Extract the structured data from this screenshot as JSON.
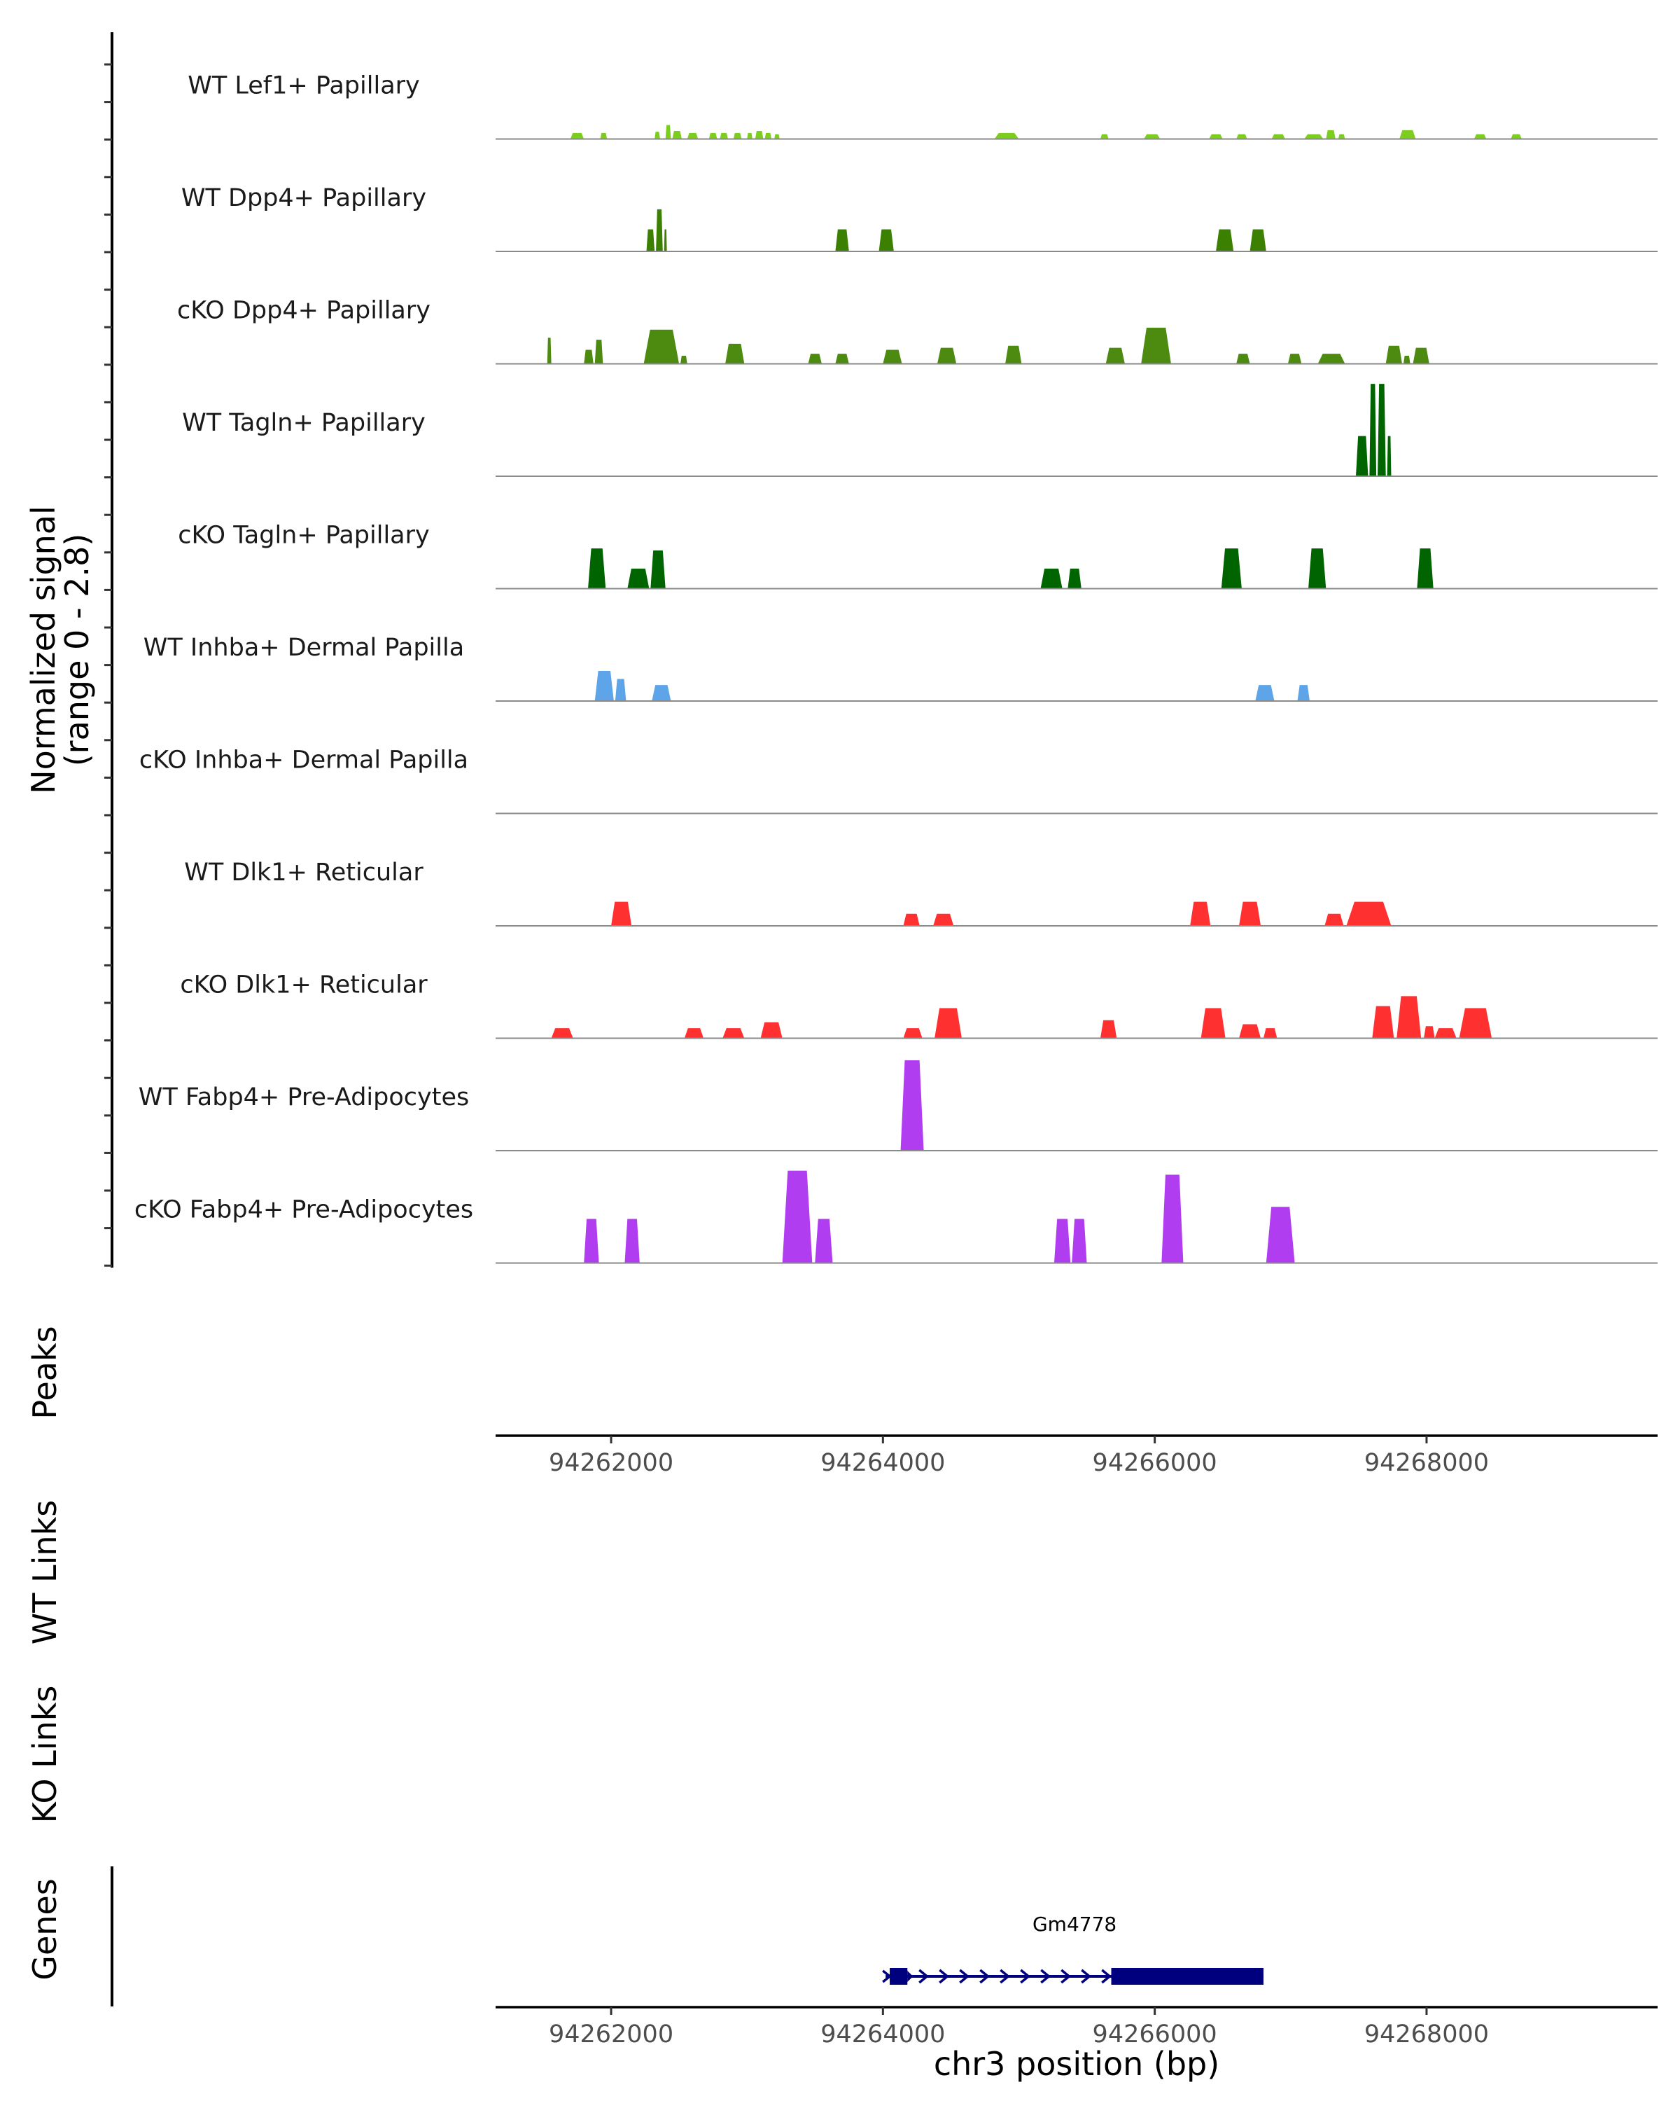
{
  "chart_data": {
    "type": "area",
    "chromosome": "chr3",
    "xlim": [
      94261150,
      94269700
    ],
    "x_ticks": [
      94262000,
      94264000,
      94266000,
      94268000
    ],
    "x_tick_labels": [
      "94262000",
      "94264000",
      "94266000",
      "94268000"
    ],
    "xlabel": "chr3 position (bp)",
    "ylabel_line1": "Normalized signal",
    "ylabel_line2": "(range 0 - 2.8)",
    "ylim": [
      0,
      2.8
    ],
    "section_labels": {
      "peaks": "Peaks",
      "wt_links": "WT Links",
      "ko_links": "KO Links",
      "genes": "Genes"
    },
    "series": [
      {
        "name": "WT Lef1+ Papillary",
        "color": "#7ccd1f",
        "peaks": [
          [
            94261700,
            94261800,
            0.15
          ],
          [
            94261920,
            94261970,
            0.15
          ],
          [
            94262320,
            94262360,
            0.18
          ],
          [
            94262400,
            94262440,
            0.35
          ],
          [
            94262450,
            94262520,
            0.2
          ],
          [
            94262560,
            94262640,
            0.15
          ],
          [
            94262720,
            94262780,
            0.15
          ],
          [
            94262800,
            94262860,
            0.15
          ],
          [
            94262900,
            94262960,
            0.15
          ],
          [
            94263000,
            94263040,
            0.15
          ],
          [
            94263060,
            94263120,
            0.2
          ],
          [
            94263130,
            94263180,
            0.15
          ],
          [
            94263200,
            94263240,
            0.12
          ],
          [
            94264820,
            94265000,
            0.15
          ],
          [
            94265600,
            94265660,
            0.12
          ],
          [
            94265920,
            94266040,
            0.12
          ],
          [
            94266400,
            94266500,
            0.12
          ],
          [
            94266600,
            94266680,
            0.12
          ],
          [
            94266860,
            94266960,
            0.12
          ],
          [
            94267100,
            94267240,
            0.12
          ],
          [
            94267260,
            94267330,
            0.22
          ],
          [
            94267350,
            94267400,
            0.12
          ],
          [
            94267800,
            94267920,
            0.22
          ],
          [
            94268350,
            94268440,
            0.12
          ],
          [
            94268620,
            94268700,
            0.12
          ]
        ]
      },
      {
        "name": "WT Dpp4+ Papillary",
        "color": "#3b8000",
        "peaks": [
          [
            94262260,
            94262320,
            0.55
          ],
          [
            94262330,
            94262380,
            1.05
          ],
          [
            94262390,
            94262410,
            0.55
          ],
          [
            94263650,
            94263750,
            0.55
          ],
          [
            94263970,
            94264080,
            0.55
          ],
          [
            94266450,
            94266580,
            0.55
          ],
          [
            94266700,
            94266820,
            0.55
          ]
        ]
      },
      {
        "name": "cKO Dpp4+ Papillary",
        "color": "#4c8a10",
        "peaks": [
          [
            94261530,
            94261560,
            0.65
          ],
          [
            94261800,
            94261870,
            0.35
          ],
          [
            94261880,
            94261940,
            0.6
          ],
          [
            94262240,
            94262500,
            0.85
          ],
          [
            94262510,
            94262560,
            0.2
          ],
          [
            94262840,
            94262980,
            0.5
          ],
          [
            94263450,
            94263550,
            0.25
          ],
          [
            94263650,
            94263750,
            0.25
          ],
          [
            94264000,
            94264140,
            0.35
          ],
          [
            94264400,
            94264540,
            0.4
          ],
          [
            94264900,
            94265020,
            0.45
          ],
          [
            94265640,
            94265780,
            0.4
          ],
          [
            94265900,
            94266120,
            0.9
          ],
          [
            94266600,
            94266700,
            0.25
          ],
          [
            94266980,
            94267080,
            0.25
          ],
          [
            94267200,
            94267400,
            0.25
          ],
          [
            94267700,
            94267820,
            0.45
          ],
          [
            94267830,
            94267880,
            0.2
          ],
          [
            94267900,
            94268020,
            0.4
          ]
        ]
      },
      {
        "name": "WT Tagln+ Papillary",
        "color": "#006400",
        "peaks": [
          [
            94267480,
            94267570,
            1.0
          ],
          [
            94267580,
            94267630,
            2.3
          ],
          [
            94267640,
            94267700,
            2.3
          ],
          [
            94267710,
            94267740,
            1.0
          ]
        ]
      },
      {
        "name": "cKO Tagln+ Papillary",
        "color": "#006400",
        "peaks": [
          [
            94261830,
            94261960,
            1.0
          ],
          [
            94262120,
            94262280,
            0.5
          ],
          [
            94262290,
            94262400,
            0.95
          ],
          [
            94265160,
            94265320,
            0.5
          ],
          [
            94265360,
            94265460,
            0.5
          ],
          [
            94266490,
            94266640,
            1.0
          ],
          [
            94267130,
            94267260,
            1.0
          ],
          [
            94267930,
            94268050,
            1.0
          ]
        ]
      },
      {
        "name": "WT Inhba+ Dermal Papilla",
        "color": "#5da5e8",
        "peaks": [
          [
            94261880,
            94262020,
            0.75
          ],
          [
            94262030,
            94262110,
            0.55
          ],
          [
            94262300,
            94262440,
            0.4
          ],
          [
            94266740,
            94266880,
            0.4
          ],
          [
            94267050,
            94267140,
            0.4
          ]
        ]
      },
      {
        "name": "cKO Inhba+ Dermal Papilla",
        "color": "#5da5e8",
        "peaks": []
      },
      {
        "name": "WT Dlk1+ Reticular",
        "color": "#ff3030",
        "peaks": [
          [
            94262000,
            94262150,
            0.6
          ],
          [
            94264150,
            94264270,
            0.3
          ],
          [
            94264370,
            94264520,
            0.3
          ],
          [
            94266260,
            94266410,
            0.6
          ],
          [
            94266620,
            94266780,
            0.6
          ],
          [
            94267250,
            94267390,
            0.3
          ],
          [
            94267410,
            94267740,
            0.6
          ]
        ]
      },
      {
        "name": "cKO Dlk1+ Reticular",
        "color": "#ff3030",
        "peaks": [
          [
            94261560,
            94261720,
            0.25
          ],
          [
            94262540,
            94262680,
            0.25
          ],
          [
            94262820,
            94262980,
            0.25
          ],
          [
            94263100,
            94263260,
            0.4
          ],
          [
            94264150,
            94264290,
            0.25
          ],
          [
            94264380,
            94264580,
            0.75
          ],
          [
            94265600,
            94265720,
            0.45
          ],
          [
            94266340,
            94266520,
            0.75
          ],
          [
            94266620,
            94266780,
            0.35
          ],
          [
            94266800,
            94266900,
            0.25
          ],
          [
            94267600,
            94267760,
            0.8
          ],
          [
            94267780,
            94267960,
            1.05
          ],
          [
            94267980,
            94268060,
            0.3
          ],
          [
            94268060,
            94268220,
            0.25
          ],
          [
            94268240,
            94268480,
            0.75
          ]
        ]
      },
      {
        "name": "WT Fabp4+ Pre-Adipocytes",
        "color": "#b03ef0",
        "peaks": [
          [
            94264130,
            94264300,
            2.25
          ]
        ]
      },
      {
        "name": "cKO Fabp4+ Pre-Adipocytes",
        "color": "#b03ef0",
        "peaks": [
          [
            94261800,
            94261910,
            1.1
          ],
          [
            94262100,
            94262210,
            1.1
          ],
          [
            94263260,
            94263480,
            2.3
          ],
          [
            94263500,
            94263630,
            1.1
          ],
          [
            94265260,
            94265380,
            1.1
          ],
          [
            94265390,
            94265500,
            1.1
          ],
          [
            94266050,
            94266210,
            2.2
          ],
          [
            94266820,
            94267030,
            1.4
          ]
        ]
      }
    ],
    "gene": {
      "name": "Gm4778",
      "strand": "+",
      "start": 94264020,
      "end": 94266800,
      "exons": [
        [
          94264050,
          94264180
        ],
        [
          94265680,
          94266800
        ]
      ]
    }
  }
}
